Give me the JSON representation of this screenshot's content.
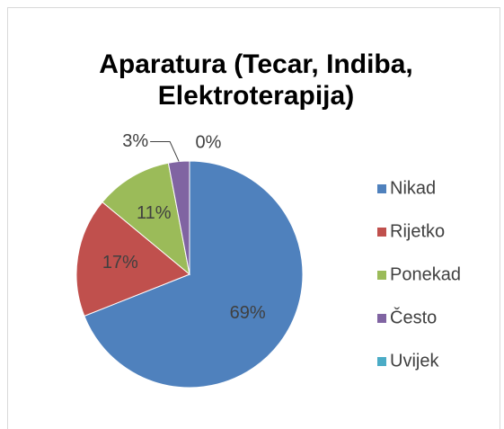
{
  "chart_data": {
    "type": "pie",
    "title": "Aparatura (Tecar, Indiba, Elektroterapija)",
    "categories": [
      "Nikad",
      "Rijetko",
      "Ponekad",
      "Često",
      "Uvijek"
    ],
    "values": [
      69,
      17,
      11,
      3,
      0
    ],
    "value_labels": [
      "69%",
      "17%",
      "11%",
      "3%",
      "0%"
    ],
    "colors": [
      "#4f81bd",
      "#c0504d",
      "#9bbb59",
      "#8064a2",
      "#4bacc6"
    ],
    "legend": "right"
  }
}
